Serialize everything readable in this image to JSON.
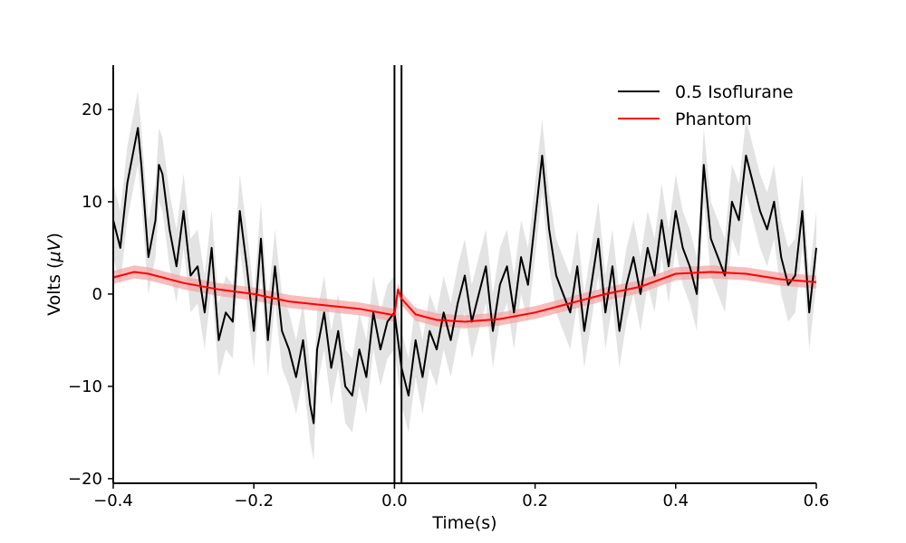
{
  "chart_data": {
    "type": "line",
    "title": "",
    "xlabel": "Time(s)",
    "ylabel_main": "Volts (",
    "ylabel_unit": "μV",
    "ylabel_close": ")",
    "xlim": [
      -0.4,
      0.6
    ],
    "ylim": [
      -20.5,
      24.8
    ],
    "xticks": [
      -0.4,
      -0.2,
      0.0,
      0.2,
      0.4,
      0.6
    ],
    "xtick_labels": [
      "−0.4",
      "−0.2",
      "0.0",
      "0.2",
      "0.4",
      "0.6"
    ],
    "yticks": [
      -20,
      -10,
      0,
      10,
      20
    ],
    "ytick_labels": [
      "−20",
      "−10",
      "0",
      "10",
      "20"
    ],
    "grid": false,
    "legend_position": "top-right",
    "vlines": [
      0.0,
      0.01
    ],
    "series": [
      {
        "name": "0.5 Isoflurane",
        "color": "#000000",
        "band_color": "#cccccc",
        "x": [
          -0.4,
          -0.39,
          -0.38,
          -0.37,
          -0.365,
          -0.36,
          -0.35,
          -0.34,
          -0.335,
          -0.33,
          -0.32,
          -0.31,
          -0.3,
          -0.29,
          -0.28,
          -0.27,
          -0.26,
          -0.25,
          -0.24,
          -0.23,
          -0.22,
          -0.21,
          -0.2,
          -0.19,
          -0.18,
          -0.17,
          -0.16,
          -0.15,
          -0.14,
          -0.13,
          -0.12,
          -0.115,
          -0.11,
          -0.1,
          -0.09,
          -0.08,
          -0.07,
          -0.06,
          -0.05,
          -0.04,
          -0.03,
          -0.02,
          -0.01,
          0.0,
          0.01,
          0.02,
          0.03,
          0.04,
          0.05,
          0.06,
          0.07,
          0.08,
          0.09,
          0.1,
          0.11,
          0.12,
          0.13,
          0.14,
          0.15,
          0.16,
          0.17,
          0.18,
          0.19,
          0.2,
          0.21,
          0.22,
          0.23,
          0.24,
          0.25,
          0.26,
          0.27,
          0.28,
          0.29,
          0.3,
          0.31,
          0.32,
          0.33,
          0.34,
          0.35,
          0.36,
          0.37,
          0.38,
          0.39,
          0.4,
          0.41,
          0.42,
          0.43,
          0.44,
          0.45,
          0.46,
          0.47,
          0.48,
          0.49,
          0.5,
          0.51,
          0.52,
          0.53,
          0.54,
          0.55,
          0.56,
          0.57,
          0.58,
          0.59,
          0.6
        ],
        "values": [
          8.0,
          5.0,
          12.0,
          16.0,
          18.0,
          14.0,
          4.0,
          8.0,
          14.0,
          13.0,
          7.0,
          3.0,
          9.0,
          2.0,
          3.0,
          -2.0,
          5.0,
          -5.0,
          -2.0,
          -3.0,
          9.0,
          3.0,
          -4.0,
          6.0,
          -5.0,
          3.0,
          -4.0,
          -6.0,
          -9.0,
          -5.0,
          -12.0,
          -14.0,
          -6.0,
          -2.0,
          -8.0,
          -4.0,
          -10.0,
          -11.0,
          -6.0,
          -9.0,
          -2.0,
          -6.0,
          -3.0,
          -2.0,
          -8.0,
          -11.0,
          -5.0,
          -9.0,
          -4.0,
          -6.0,
          -2.0,
          -5.0,
          -1.0,
          2.0,
          -3.0,
          0.0,
          3.0,
          -4.0,
          1.0,
          3.0,
          -2.0,
          4.0,
          1.0,
          8.0,
          15.0,
          7.0,
          2.0,
          0.0,
          -2.0,
          3.0,
          -4.0,
          1.0,
          6.0,
          -2.0,
          3.0,
          -4.0,
          1.0,
          4.0,
          0.0,
          5.0,
          2.0,
          8.0,
          3.0,
          9.0,
          5.0,
          3.0,
          0.0,
          14.0,
          6.0,
          4.0,
          2.0,
          10.0,
          8.0,
          15.0,
          12.0,
          9.0,
          7.0,
          10.0,
          4.0,
          1.0,
          2.0,
          9.0,
          -2.0,
          5.0
        ],
        "band_halfwidth": 4.0
      },
      {
        "name": "Phantom",
        "color": "#ff0000",
        "band_color": "#f4a0a0",
        "x": [
          -0.4,
          -0.37,
          -0.35,
          -0.3,
          -0.25,
          -0.2,
          -0.15,
          -0.1,
          -0.05,
          0.0,
          0.005,
          0.01,
          0.03,
          0.06,
          0.1,
          0.15,
          0.2,
          0.25,
          0.3,
          0.35,
          0.4,
          0.45,
          0.5,
          0.55,
          0.6
        ],
        "values": [
          1.8,
          2.4,
          2.2,
          1.2,
          0.5,
          0.0,
          -0.8,
          -1.2,
          -1.6,
          -2.3,
          0.5,
          -0.5,
          -2.2,
          -2.8,
          -3.0,
          -2.7,
          -2.0,
          -1.0,
          0.0,
          0.8,
          2.2,
          2.4,
          2.2,
          1.6,
          1.3
        ],
        "band_halfwidth": 0.7
      }
    ]
  }
}
